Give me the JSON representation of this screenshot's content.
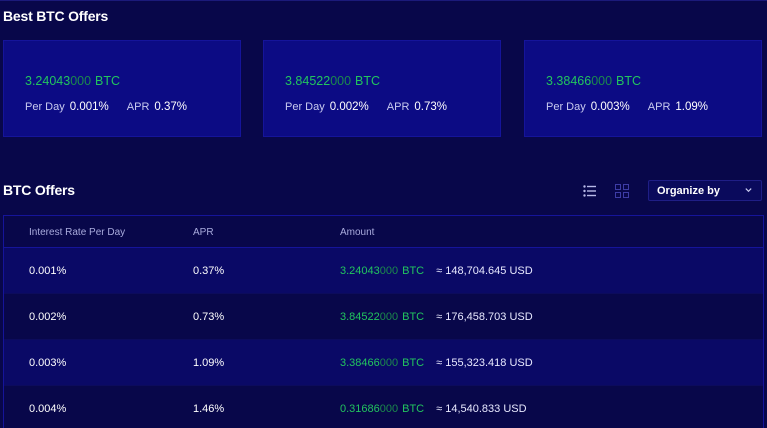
{
  "best_section": {
    "title": "Best BTC Offers",
    "cards": [
      {
        "amount_main": "3.24043",
        "amount_zeros": "000",
        "unit": "BTC",
        "per_day_label": "Per Day",
        "per_day": "0.001%",
        "apr_label": "APR",
        "apr": "0.37%"
      },
      {
        "amount_main": "3.84522",
        "amount_zeros": "000",
        "unit": "BTC",
        "per_day_label": "Per Day",
        "per_day": "0.002%",
        "apr_label": "APR",
        "apr": "0.73%"
      },
      {
        "amount_main": "3.38466",
        "amount_zeros": "000",
        "unit": "BTC",
        "per_day_label": "Per Day",
        "per_day": "0.003%",
        "apr_label": "APR",
        "apr": "1.09%"
      }
    ]
  },
  "offers_section": {
    "title": "BTC Offers",
    "list_icon": "list-view-icon",
    "grid_icon": "grid-view-icon",
    "organize": {
      "label": "Organize by",
      "icon": "chevron-down-icon"
    },
    "table": {
      "headers": [
        "Interest Rate Per Day",
        "APR",
        "Amount"
      ],
      "rows": [
        {
          "rate": "0.001%",
          "apr": "0.37%",
          "amount_main": "3.24043",
          "amount_zeros": "000",
          "unit": "BTC",
          "usd": "≈ 148,704.645 USD"
        },
        {
          "rate": "0.002%",
          "apr": "0.73%",
          "amount_main": "3.84522",
          "amount_zeros": "000",
          "unit": "BTC",
          "usd": "≈ 176,458.703 USD"
        },
        {
          "rate": "0.003%",
          "apr": "1.09%",
          "amount_main": "3.38466",
          "amount_zeros": "000",
          "unit": "BTC",
          "usd": "≈ 155,323.418 USD"
        },
        {
          "rate": "0.004%",
          "apr": "1.46%",
          "amount_main": "0.31686",
          "amount_zeros": "000",
          "unit": "BTC",
          "usd": "≈ 14,540.833 USD"
        }
      ]
    }
  },
  "colors": {
    "background": "#08074a",
    "card": "#0c0b84",
    "accent_green": "#22c55e",
    "accent_green_dim": "#1b8a4c"
  }
}
